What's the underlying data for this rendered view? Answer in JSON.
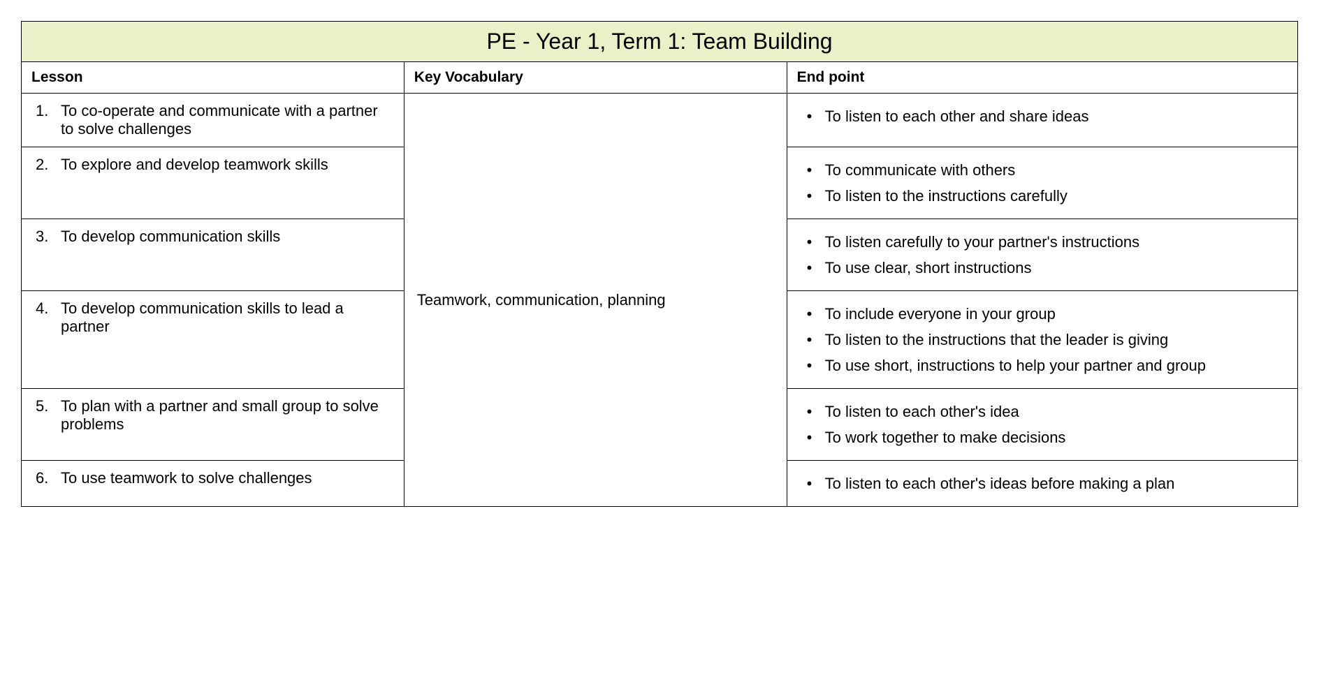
{
  "title": "PE - Year 1, Term 1: Team Building",
  "headers": {
    "lesson": "Lesson",
    "vocab": "Key Vocabulary",
    "endpoint": "End point"
  },
  "vocabulary": "Teamwork, communication, planning",
  "rows": [
    {
      "num": "1.",
      "lesson": "To co-operate and communicate with a partner to solve challenges",
      "endpoints": [
        "To listen to each other and share ideas"
      ]
    },
    {
      "num": "2.",
      "lesson": "To explore and develop teamwork skills",
      "endpoints": [
        "To communicate with others",
        "To listen to the instructions carefully"
      ]
    },
    {
      "num": "3.",
      "lesson": "To develop communication skills",
      "endpoints": [
        "To listen carefully to your partner's instructions",
        "To use clear, short instructions"
      ]
    },
    {
      "num": "4.",
      "lesson": "To develop communication skills to lead a partner",
      "endpoints": [
        "To include everyone in your group",
        "To listen to the instructions that the leader is giving",
        "To use short, instructions to help your partner and group"
      ]
    },
    {
      "num": "5.",
      "lesson": "To plan with a partner and small group to solve problems",
      "endpoints": [
        "To listen to each other's idea",
        "To work together to make decisions"
      ]
    },
    {
      "num": "6.",
      "lesson": "To use teamwork to solve challenges",
      "endpoints": [
        "To listen to each other's ideas before making a plan"
      ]
    }
  ],
  "style": {
    "title_bg": "#eaf1c9",
    "border_color": "#000000",
    "font_family": "Comic Sans MS",
    "title_fontsize": 32,
    "body_fontsize": 22,
    "header_fontsize": 21
  }
}
